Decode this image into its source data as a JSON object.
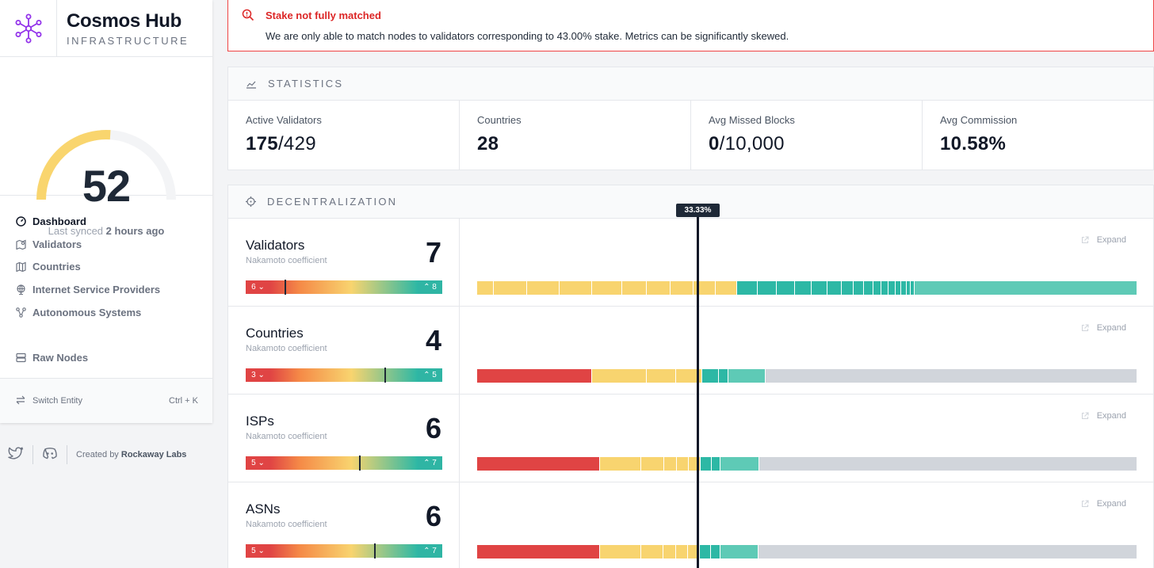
{
  "brand": {
    "title": "Cosmos Hub",
    "subtitle": "INFRASTRUCTURE",
    "logo_icon": "network-icon",
    "logo_color": "#9333ea"
  },
  "score": {
    "value": "52",
    "fraction": 0.52,
    "color": "#f9d56e",
    "synced_prefix": "Last synced ",
    "synced_time": "2 hours ago"
  },
  "nav": {
    "items": [
      {
        "label": "Dashboard",
        "icon": "gauge-icon",
        "active": true
      },
      {
        "label": "Validators",
        "icon": "map-pin-icon"
      },
      {
        "label": "Countries",
        "icon": "map-icon"
      },
      {
        "label": "Internet Service Providers",
        "icon": "globe-icon"
      },
      {
        "label": "Autonomous Systems",
        "icon": "network-icon"
      },
      {
        "label": "Raw Nodes",
        "icon": "server-icon"
      }
    ],
    "switch_label": "Switch Entity",
    "switch_shortcut": "Ctrl + K"
  },
  "footer": {
    "created_by": "Created by ",
    "author": "Rockaway Labs",
    "icons": [
      "twitter-icon",
      "discord-icon"
    ]
  },
  "alert": {
    "title": "Stake not fully matched",
    "message": "We are only able to match nodes to validators corresponding to 43.00% stake. Metrics can be significantly skewed.",
    "color": "#dc2626"
  },
  "statistics": {
    "title": "STATISTICS",
    "items": [
      {
        "label": "Active Validators",
        "value_bold": "175",
        "value_rest": "/429"
      },
      {
        "label": "Countries",
        "value_bold": "28",
        "value_rest": ""
      },
      {
        "label": "Avg Missed Blocks",
        "value_bold": "0",
        "value_rest": "/10,000"
      },
      {
        "label": "Avg Commission",
        "value_bold": "10.58%",
        "value_rest": ""
      }
    ]
  },
  "decentralization": {
    "title": "DECENTRALIZATION",
    "threshold_label": "33.33%",
    "expand_label": "Expand",
    "colors": {
      "red": "#e04444",
      "yellow": "#f8d46f",
      "teal": "#2db8a5",
      "light_teal": "#5ecab6",
      "gray": "#d1d5db"
    },
    "rows": [
      {
        "name": "Validators",
        "sub": "Nakamoto coefficient",
        "value": "7",
        "min": "6",
        "max": "8",
        "marker_fraction": 0.1,
        "stake_shares_percent": [
          2.3,
          4.4,
          4.4,
          4.4,
          4.1,
          3.3,
          3.2,
          3.1,
          3.0,
          2.9,
          2.8,
          2.6,
          2.4,
          2.3,
          2.1,
          2.0,
          1.6,
          1.4,
          1.2,
          1.1,
          1.0,
          0.9,
          0.8,
          0.7,
          0.6,
          0.5,
          30.1
        ]
      },
      {
        "name": "Countries",
        "sub": "Nakamoto coefficient",
        "value": "4",
        "min": "3",
        "max": "5",
        "marker_fraction": 0.78,
        "stake_shares_percent": [
          17.4,
          8.3,
          4.4,
          4.0,
          2.5,
          1.4,
          5.7,
          56.3
        ]
      },
      {
        "name": "ISPs",
        "sub": "Nakamoto coefficient",
        "value": "6",
        "min": "5",
        "max": "7",
        "marker_fraction": 0.61,
        "stake_shares_percent": [
          18.6,
          6.3,
          3.4,
          1.9,
          1.8,
          1.8,
          1.7,
          1.4,
          5.8,
          57.3
        ]
      },
      {
        "name": "ASNs",
        "sub": "Nakamoto coefficient",
        "value": "6",
        "min": "5",
        "max": "7",
        "marker_fraction": 0.71,
        "stake_shares_percent": [
          18.6,
          6.2,
          3.4,
          1.9,
          1.8,
          1.8,
          1.7,
          1.4,
          5.8,
          57.4
        ]
      }
    ]
  }
}
